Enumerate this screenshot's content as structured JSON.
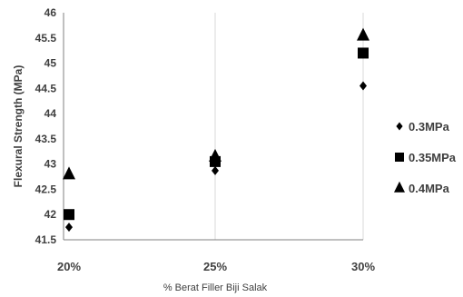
{
  "chart_data": {
    "type": "scatter",
    "title": "",
    "xlabel": "% Berat Filler Biji Salak",
    "ylabel": "Flexural Strength (MPa)",
    "categories": [
      "20%",
      "25%",
      "30%"
    ],
    "y_ticks": [
      "41.5",
      "42",
      "42.5",
      "43",
      "43.5",
      "44",
      "44.5",
      "45",
      "45.5",
      "46"
    ],
    "ylim": [
      41.5,
      46
    ],
    "grid": "vertical",
    "legend_position": "right",
    "series": [
      {
        "name": "0.3MPa",
        "marker": "diamond",
        "color": "#000000",
        "values": [
          41.75,
          42.87,
          44.55
        ]
      },
      {
        "name": "0.35MPa",
        "marker": "square",
        "color": "#000000",
        "values": [
          42.0,
          43.05,
          45.2
        ]
      },
      {
        "name": "0.4MPa",
        "marker": "triangle",
        "color": "#000000",
        "values": [
          42.8,
          43.15,
          45.55
        ]
      }
    ]
  }
}
